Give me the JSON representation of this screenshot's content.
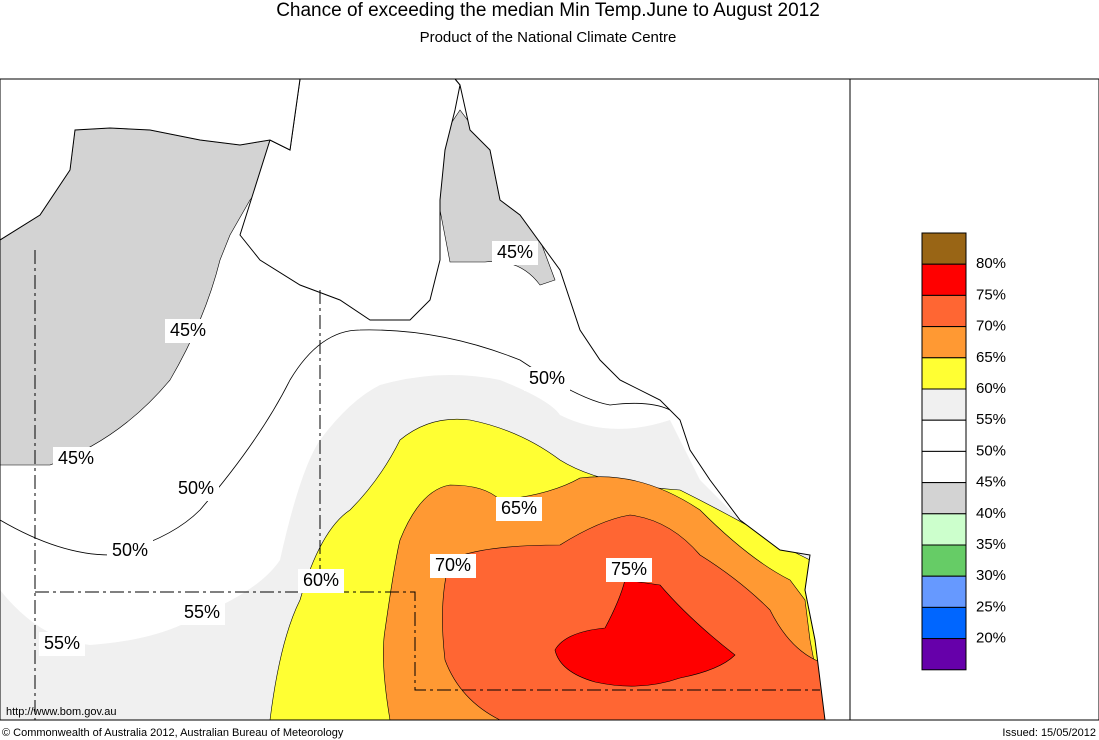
{
  "header": {
    "title": "Chance of exceeding the median Min Temp.June to August 2012",
    "subtitle": "Product of the National Climate Centre"
  },
  "map": {
    "contour_labels": [
      "45%",
      "45%",
      "45%",
      "50%",
      "50%",
      "50%",
      "65%",
      "70%",
      "75%",
      "60%",
      "55%",
      "55%"
    ]
  },
  "legend": {
    "colors": [
      "#996515",
      "#ff0000",
      "#ff6633",
      "#ff9933",
      "#ffff33",
      "#f0f0f0",
      "#ffffff",
      "#ffffff",
      "#d3d3d3",
      "#ccffcc",
      "#66cc66",
      "#6699ff",
      "#0066ff",
      "#6600aa"
    ],
    "labels": [
      "80%",
      "75%",
      "70%",
      "65%",
      "60%",
      "55%",
      "50%",
      "45%",
      "40%",
      "35%",
      "30%",
      "25%",
      "20%"
    ]
  },
  "footer": {
    "url": "http://www.bom.gov.au",
    "copyright": "© Commonwealth of Australia 2012, Australian Bureau of Meteorology",
    "issued": "Issued: 15/05/2012"
  }
}
